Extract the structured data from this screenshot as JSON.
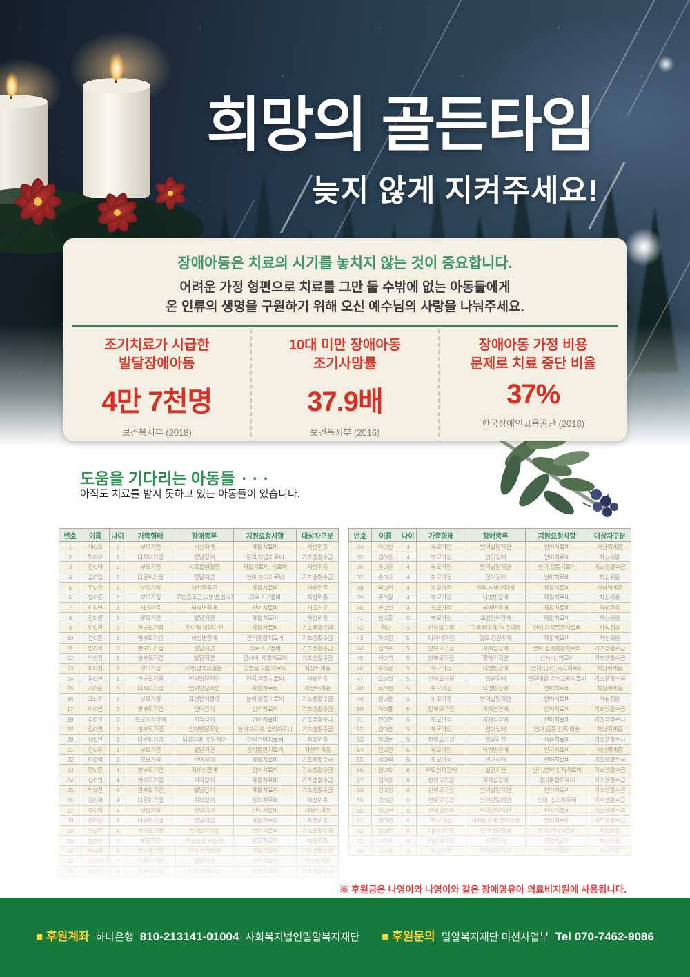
{
  "hero": {
    "title": "희망의 골든타임",
    "subtitle": "늦지 않게 지켜주세요!"
  },
  "intro": {
    "line1": "장애아동은 치료의 시기를 놓치지 않는 것이 중요합니다.",
    "line2": "어려운 가정 형편으로 치료를 그만 둘 수밖에 없는 아동들에게",
    "line3": "온 인류의 생명을 구원하기 위해 오신 예수님의 사랑을 나눠주세요."
  },
  "stats": [
    {
      "label1": "조기치료가 시급한",
      "label2": "발달장애아동",
      "value": "4만 7천명",
      "source": "보건복지부 (2018)"
    },
    {
      "label1": "10대 미만 장애아동",
      "label2": "조기사망률",
      "value": "37.9배",
      "source": "보건복지부 (2016)"
    },
    {
      "label1": "장애아동 가정 비용",
      "label2": "문제로 치료 중단 비율",
      "value": "37%",
      "source": "한국장애인고용공단 (2018)"
    }
  ],
  "children_section": {
    "title": "도움을 기다리는 아동들",
    "dots": "···",
    "subtitle": "아직도 치료를 받지 못하고 있는 아동들이 있습니다."
  },
  "tables": {
    "headers": [
      "번호",
      "이름",
      "나이",
      "가족형태",
      "장애종류",
      "지원요청사항",
      "대상자구분"
    ],
    "left_rows": [
      [
        "1",
        "채O호",
        "1",
        "부모가정",
        "뇌성마비",
        "재활치료비",
        "차상위층"
      ],
      [
        "2",
        "박O우",
        "2",
        "다자녀가정",
        "발달장애",
        "물리,작업치료비",
        "기초생활수급"
      ],
      [
        "3",
        "김O아",
        "2",
        "부모가정",
        "시트룰린혈증",
        "재활치료비, 의료비",
        "차상위층"
      ],
      [
        "4",
        "김O담",
        "2",
        "다문화가정",
        "발달지연",
        "언어,놀이치료비",
        "기초생활수급"
      ],
      [
        "5",
        "주O잔",
        "2",
        "부모가정",
        "차지증후군",
        "재활치료비",
        "차상위층"
      ],
      [
        "6",
        "엄O른",
        "2",
        "부모가정",
        "루빈증후군,뇌병변,청각장애",
        "의료소모품비",
        "차상위층"
      ],
      [
        "7",
        "안O연",
        "3",
        "시설아동",
        "뇌병변장애",
        "언어치료비",
        "시설거주"
      ],
      [
        "8",
        "김O원",
        "3",
        "부모가정",
        "발달지연",
        "재활치료비",
        "차상위층"
      ],
      [
        "9",
        "안O환",
        "3",
        "한부모가정",
        "전반적 발달지연",
        "재활치료비",
        "기초생활수급"
      ],
      [
        "10",
        "김O준",
        "3",
        "한부모가정",
        "뇌병변장애",
        "감각통합치료비",
        "기초생활수급"
      ],
      [
        "11",
        "연O혁",
        "3",
        "한부모가정",
        "발달지연",
        "의료소모품비",
        "기초생활수급"
      ],
      [
        "12",
        "최O진",
        "3",
        "한부모가정",
        "발달지연",
        "검사비, 재활치료비",
        "기초생활수급"
      ],
      [
        "13",
        "이O원",
        "3",
        "부모가정",
        "O번염색체결손",
        "낮병동 재활치료비",
        "차상위계층"
      ],
      [
        "14",
        "김O연",
        "3",
        "한부모가정",
        "언어발달지연",
        "인지,감통치료비",
        "차상위층"
      ],
      [
        "15",
        "서O준",
        "3",
        "다자녀가정",
        "언어발달지연",
        "재활치료비",
        "차상위계층"
      ],
      [
        "16",
        "표O우",
        "3",
        "부모가정",
        "표현언어장애",
        "놀이,감통치료비",
        "기초생활수급"
      ],
      [
        "17",
        "이O성",
        "3",
        "한부모가정",
        "언어장애",
        "심리치료비",
        "기초생활수급"
      ],
      [
        "18",
        "김O선",
        "3",
        "부모시각장애",
        "지적장애",
        "언어치료비",
        "기초생활수급"
      ],
      [
        "19",
        "김O견",
        "3",
        "한부모가정",
        "언어발달지연",
        "놀이치료비, 심리치료비",
        "기초생활수급"
      ],
      [
        "20",
        "정O안",
        "3",
        "다문화가정",
        "뇌성마비, 발달지연",
        "인지언어치료비",
        "차상위층"
      ],
      [
        "21",
        "김O우",
        "3",
        "부모가정",
        "발달지연",
        "감각통합치료비",
        "차상위계층"
      ],
      [
        "22",
        "이O엽",
        "3",
        "부모가정",
        "언어장애",
        "재활치료비",
        "기초생활수급"
      ],
      [
        "23",
        "정O준",
        "4",
        "한부모가정",
        "지체성장애",
        "언어치료비",
        "기초생활수급"
      ],
      [
        "24",
        "심O연",
        "4",
        "한부모가정",
        "시각장애",
        "재활치료비",
        "기초생활수급"
      ],
      [
        "25",
        "박O진",
        "4",
        "한부모가정",
        "발달장애",
        "재활치료비",
        "기초생활수급"
      ],
      [
        "26",
        "정O아",
        "4",
        "다문화가정",
        "지적장애",
        "놀이치료비",
        "차상위층"
      ],
      [
        "27",
        "류O엽",
        "4",
        "부모가정",
        "발달지연",
        "언어치료비",
        "차상위계층"
      ],
      [
        "28",
        "천O율",
        "4",
        "다문화가정",
        "발달지연",
        "재활치료비",
        "차상위층"
      ],
      [
        "29",
        "신O준",
        "4",
        "한부모가정",
        "언어발달지연",
        "언어치료비",
        "기초생활수급"
      ],
      [
        "30",
        "천O수",
        "4",
        "부모가정",
        "저산소성 뇌손상",
        "운동치료비",
        "차상위층"
      ],
      [
        "31",
        "박O정",
        "4",
        "한부모가정",
        "지적,청각장애",
        "재활치료비",
        "기초생활수급"
      ],
      [
        "32",
        "김O태",
        "4",
        "다자녀가정",
        "발달지연",
        "언어치료비",
        "차상위계층"
      ],
      [
        "33",
        "원O선",
        "4",
        "한부모가정",
        "인지,언어지연",
        "언어치료비",
        "기초생활수급"
      ]
    ],
    "right_rows": [
      [
        "34",
        "아O민",
        "4",
        "부모가정",
        "언어발달지연",
        "언어치료비",
        "차상위계층"
      ],
      [
        "35",
        "김O을",
        "4",
        "부모가정",
        "언어장애",
        "언어치료비",
        "차상위층"
      ],
      [
        "36",
        "송O안",
        "4",
        "부모가정",
        "언어발달지연",
        "언어,감통치료비",
        "기초생활수급"
      ],
      [
        "37",
        "손O나",
        "4",
        "부모가정",
        "언어장애",
        "언어치료비",
        "차상위층"
      ],
      [
        "38",
        "박O권",
        "4",
        "부모가정",
        "지적,뇌병변장애",
        "재활치료비",
        "차상위계층"
      ],
      [
        "39",
        "주O일",
        "4",
        "부모가정",
        "뇌병변장애",
        "재활치료비",
        "차상위층"
      ],
      [
        "40",
        "신O실",
        "4",
        "부모가정",
        "뇌병변장애",
        "재활치료비",
        "차상위층"
      ],
      [
        "41",
        "현O준",
        "5",
        "부모가정",
        "표현언어장애",
        "재활치료비",
        "차상위층"
      ],
      [
        "42",
        "지O",
        "5",
        "한부모가정",
        "구음장애 및 부주의증",
        "언어,감각통합치료비",
        "차상위층"
      ],
      [
        "43",
        "하O민",
        "5",
        "다자녀가정",
        "경도 정신지체",
        "재활치료비",
        "차상위층"
      ],
      [
        "44",
        "김O우",
        "5",
        "한부모가정",
        "지체성장애",
        "언어,감각통합치료비",
        "기초생활수급"
      ],
      [
        "45",
        "서O석",
        "5",
        "한부모가정",
        "말하기지연",
        "검사비, 의료비",
        "기초생활수급"
      ],
      [
        "46",
        "홍O환",
        "5",
        "부모가정",
        "뇌병변장애",
        "언어(인지),물리치료비",
        "차상위계층"
      ],
      [
        "47",
        "오O실",
        "5",
        "한부모가정",
        "발달장애",
        "발달재활,특수교육치료비",
        "기초생활수급"
      ],
      [
        "48",
        "육O현",
        "5",
        "부모가정",
        "뇌병변장애",
        "언어치료비",
        "차상위계층"
      ],
      [
        "49",
        "명O율",
        "5",
        "부모가정",
        "언어발달지연",
        "언어치료비",
        "차상위층"
      ],
      [
        "50",
        "아O콜",
        "5",
        "한부모가정",
        "지체성장애",
        "언어치료비",
        "기초생활수급"
      ],
      [
        "51",
        "천O찬",
        "5",
        "부모가정",
        "지체성장애",
        "언어치료비",
        "기초생활수급"
      ],
      [
        "52",
        "김O찬",
        "5",
        "부모가정",
        "언어장애",
        "언어,감통,인지,미술",
        "차상위계층"
      ],
      [
        "53",
        "박O문",
        "5",
        "한부모가정",
        "발달지연",
        "행동치료비",
        "기초생활수급"
      ],
      [
        "54",
        "김O건",
        "5",
        "부모가정",
        "뇌병변장애",
        "인지치료비",
        "차상위계층"
      ],
      [
        "55",
        "김O식",
        "6",
        "부모가정",
        "언어장애",
        "언어치료비",
        "기초생활수급"
      ],
      [
        "56",
        "천O수",
        "6",
        "부모청각장애",
        "발달지연",
        "심리,언어,인지치료비",
        "기초생활수급"
      ],
      [
        "57",
        "김O율",
        "6",
        "한부모가정",
        "지체성장애",
        "감각통합치료비",
        "기초생활수급"
      ],
      [
        "58",
        "김O성",
        "6",
        "한부모가정",
        "언어발달지연",
        "언어치료비",
        "기초생활수급"
      ],
      [
        "59",
        "김O린",
        "6",
        "한부모가정",
        "언어발달지연",
        "언어, 심리치료비",
        "기초생활수급"
      ],
      [
        "60",
        "김O현",
        "6",
        "한부모가정",
        "언어발달지연",
        "언어치료비",
        "기초생활수급"
      ],
      [
        "61",
        "원O현",
        "6",
        "부모가정",
        "지체성장애,언어장애",
        "언어치료비",
        "기초생활수급"
      ],
      [
        "62",
        "김O원",
        "6",
        "다자녀가정",
        "전반발달장애",
        "인지,언어치료비",
        "차상위층"
      ],
      [
        "63",
        "나O주",
        "6",
        "다문화가정",
        "지적장애",
        "작업치료비",
        "차상위층"
      ],
      [
        "64",
        "오O율",
        "6",
        "부모가정",
        "언어발달지연",
        "언어치료비",
        "차상위층"
      ]
    ]
  },
  "note": "※ 후원금은 나영이와 나영이와 같은 장애영유아 의료비지원에 사용됩니다.",
  "footer": {
    "account_label": "■ 후원계좌",
    "account_bank": "하나은행",
    "account_number": "810-213141-01004",
    "account_org": "사회복지법인밀알복지재단",
    "contact_label": "■ 후원문의",
    "contact_org": "밀알복지재단 미션사업부",
    "contact_tel": "Tel 070-7462-9086"
  },
  "colors": {
    "footer_green": "#177a3d",
    "section_green": "#2f9150",
    "stat_red": "#d93025",
    "note_red": "#e23c3c",
    "footer_yellow": "#ffd43d"
  }
}
